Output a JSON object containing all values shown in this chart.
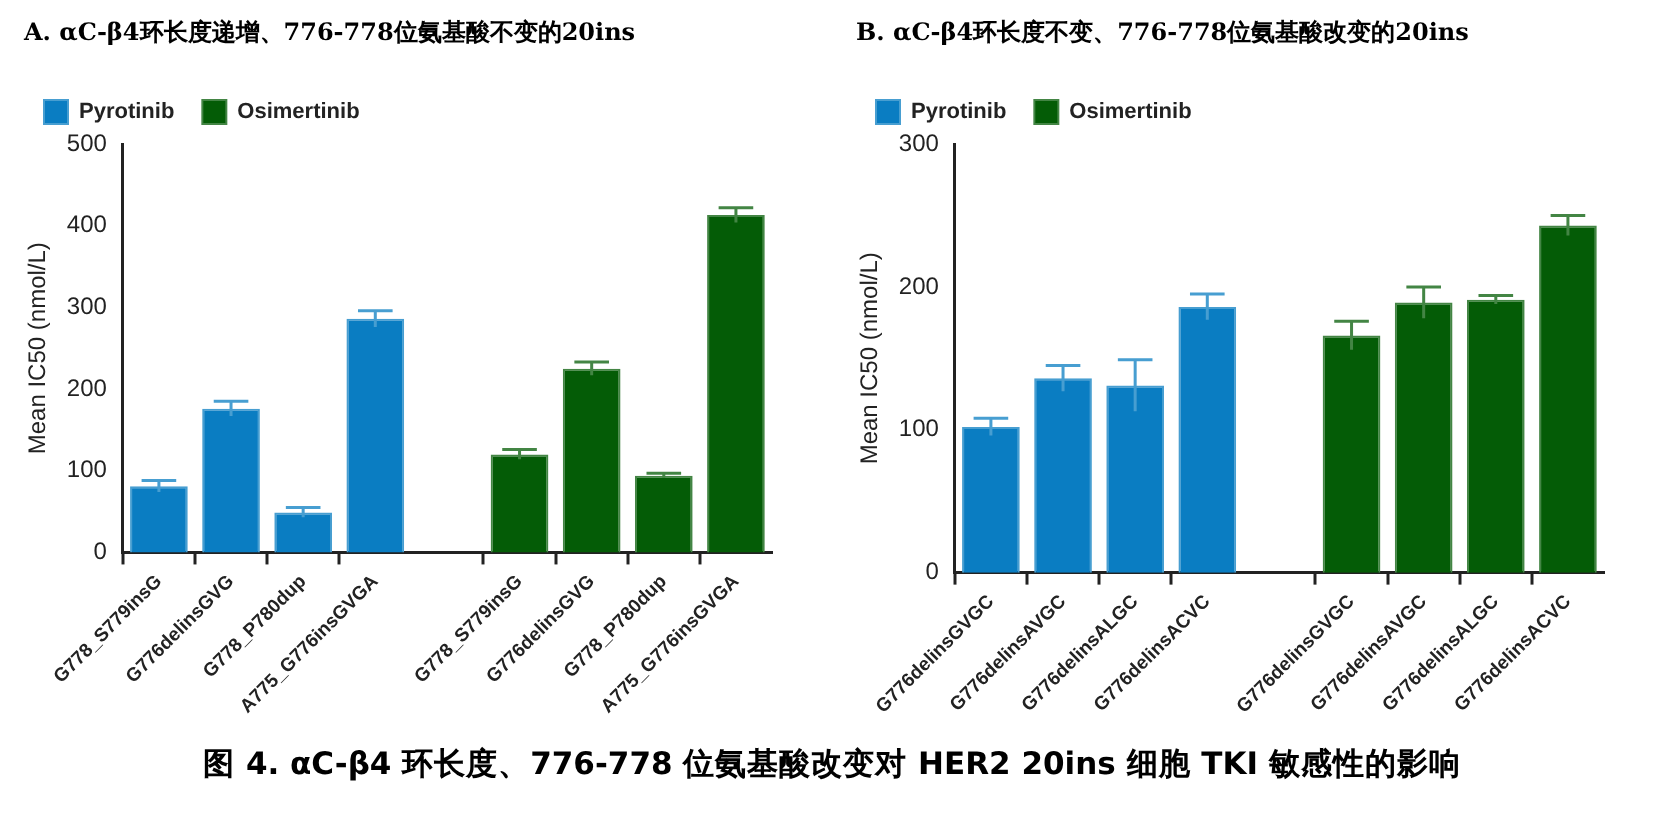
{
  "chart_data": [
    {
      "type": "bar",
      "title": "A. αC-β4环长度递增、776-778位氨基酸不变的20ins",
      "ylabel": "Mean IC50 (nmol/L)",
      "categories": [
        "G778_S779insG",
        "G776delinsGVG",
        "G778_P780dup",
        "A775_G776insGVGA",
        null,
        "G778_S779insG",
        "G776delinsGVG",
        "G778_P780dup",
        "A775_G776insGVGA"
      ],
      "series": [
        {
          "name": "Pyrotinib",
          "color": "#0a7dc2",
          "values": [
            81,
            176,
            49,
            286,
            null,
            null,
            null,
            null,
            null
          ],
          "errors": [
            7,
            9,
            6,
            10,
            null,
            null,
            null,
            null,
            null
          ]
        },
        {
          "name": "Osimertinib",
          "color": "#045c06",
          "values": [
            null,
            null,
            null,
            null,
            null,
            120,
            225,
            94,
            413
          ],
          "errors": [
            null,
            null,
            null,
            null,
            null,
            6,
            8,
            3,
            9
          ]
        }
      ],
      "ylim": [
        0,
        500
      ],
      "yticks": [
        0,
        100,
        200,
        300,
        400,
        500
      ],
      "grid": false,
      "legend": "top left",
      "annotations": [
        "图 4. αC-β4 环长度、776-778 位氨基酸改变对 HER2 20ins 细胞 TKI 敏感性的影响"
      ]
    },
    {
      "type": "bar",
      "title": "B. αC-β4环长度不变、776-778位氨基酸改变的20ins",
      "ylabel": "Mean IC50 (nmol/L)",
      "categories": [
        "G776delinsGVGC",
        "G776delinsAVGC",
        "G776delinsALGC",
        "G776delinsACVC",
        null,
        "G776delinsGVGC",
        "G776delinsAVGC",
        "G776delinsALGC",
        "G776delinsACVC"
      ],
      "series": [
        {
          "name": "Pyrotinib",
          "color": "#0a7dc2",
          "values": [
            102,
            136,
            131,
            186,
            null,
            null,
            null,
            null,
            null
          ],
          "errors": [
            6,
            9,
            18,
            9,
            null,
            null,
            null,
            null,
            null
          ]
        },
        {
          "name": "Osimertinib",
          "color": "#045c06",
          "values": [
            null,
            null,
            null,
            null,
            null,
            166,
            189,
            191,
            243
          ],
          "errors": [
            null,
            null,
            null,
            null,
            null,
            10,
            11,
            3,
            7
          ]
        }
      ],
      "ylim": [
        0,
        300
      ],
      "yticks": [
        0,
        100,
        200,
        300
      ],
      "grid": false,
      "legend": "top left"
    }
  ]
}
